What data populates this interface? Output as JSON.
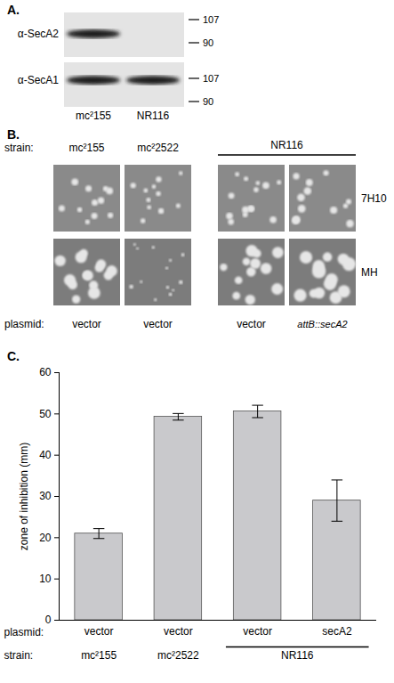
{
  "panel_a": {
    "letter": "A.",
    "lanes": [
      "mc²155",
      "NR116"
    ],
    "blots": [
      {
        "label": "α-SecA2",
        "markers": [
          107,
          90
        ],
        "bands": [
          true,
          false
        ]
      },
      {
        "label": "α-SecA1",
        "markers": [
          107,
          90
        ],
        "bands": [
          true,
          true
        ]
      }
    ]
  },
  "panel_b": {
    "letter": "B.",
    "row_heads": {
      "strain": "strain:",
      "plasmid": "plasmid:"
    },
    "strains": [
      "mc²155",
      "mc²2522",
      "NR116",
      "NR116"
    ],
    "plasmids": [
      "vector",
      "vector",
      "vector",
      "attB::secA2"
    ],
    "media": [
      "7H10",
      "MH"
    ]
  },
  "panel_c": {
    "letter": "C."
  },
  "chart_data": {
    "type": "bar",
    "categories": [
      "vector",
      "vector",
      "vector",
      "secA2"
    ],
    "groups": [
      "mc²155",
      "mc²2522",
      "NR116",
      "NR116"
    ],
    "values": [
      21,
      49.3,
      50.6,
      29
    ],
    "errors": [
      1.2,
      0.8,
      1.5,
      5
    ],
    "ylabel": "zone of inhibition (mm)",
    "annotations": {
      "plasmid": "plasmid:",
      "strain": "strain:"
    },
    "ylim": [
      0,
      60
    ],
    "yticks": [
      0,
      10,
      20,
      30,
      40,
      50,
      60
    ],
    "color": "#c9c9cc",
    "grid": false
  }
}
